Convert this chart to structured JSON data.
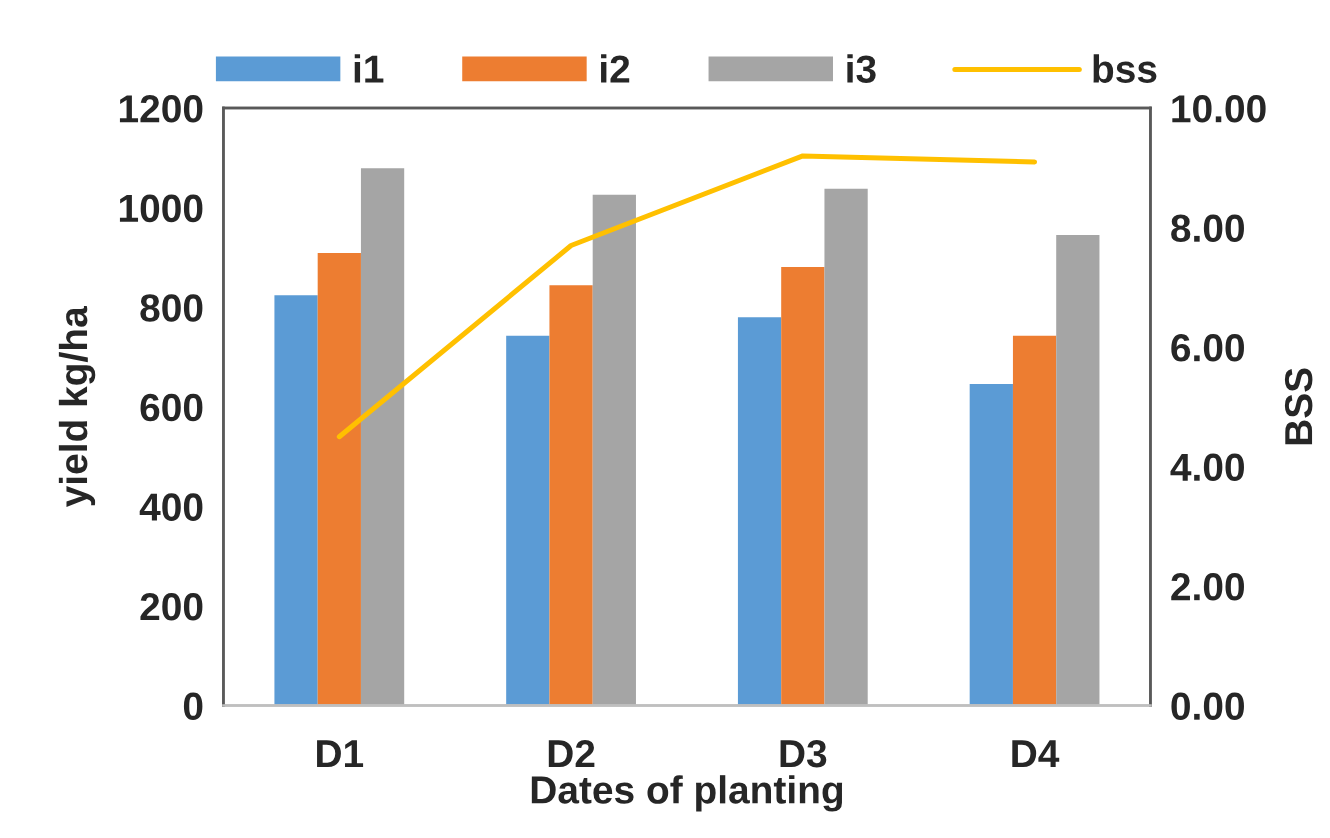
{
  "chart_data": {
    "type": "bar",
    "categories": [
      "D1",
      "D2",
      "D3",
      "D4"
    ],
    "xlabel": "Dates of planting",
    "ylabel": "yield kg/ha",
    "y2label": "BSS",
    "series": [
      {
        "name": "i1",
        "color": "#5b9bd5",
        "values": [
          824,
          743,
          780,
          646
        ]
      },
      {
        "name": "i2",
        "color": "#ed7d31",
        "values": [
          909,
          844,
          881,
          743
        ]
      },
      {
        "name": "i3",
        "color": "#a5a5a5",
        "values": [
          1079,
          1026,
          1038,
          945
        ]
      },
      {
        "name": "bss",
        "type": "line",
        "axis": "y2",
        "color": "#ffc000",
        "values": [
          4.5,
          7.7,
          9.2,
          9.1
        ]
      }
    ],
    "ylim": [
      0,
      1200
    ],
    "yticks": [
      0,
      200,
      400,
      600,
      800,
      1000,
      1200
    ],
    "y2lim": [
      0,
      10
    ],
    "y2ticks": [
      {
        "value": 0,
        "label": "0.00"
      },
      {
        "value": 2,
        "label": "2.00"
      },
      {
        "value": 4,
        "label": "4.00"
      },
      {
        "value": 6,
        "label": "6.00"
      },
      {
        "value": 8,
        "label": "8.00"
      },
      {
        "value": 10,
        "label": "10.00"
      }
    ],
    "legend": "top",
    "grid": false
  }
}
